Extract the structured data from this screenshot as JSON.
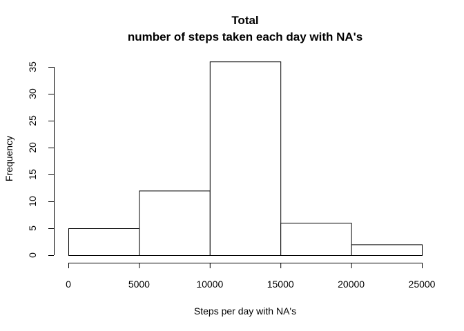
{
  "chart_data": {
    "type": "bar",
    "title_line1": "Total",
    "title_line2": "number of steps taken each day with NA's",
    "xlabel": "Steps per day with NA's",
    "ylabel": "Frequency",
    "bins": [
      {
        "start": 0,
        "end": 5000,
        "count": 5
      },
      {
        "start": 5000,
        "end": 10000,
        "count": 12
      },
      {
        "start": 10000,
        "end": 15000,
        "count": 36
      },
      {
        "start": 15000,
        "end": 20000,
        "count": 6
      },
      {
        "start": 20000,
        "end": 25000,
        "count": 2
      }
    ],
    "xlim": [
      0,
      25000
    ],
    "ylim": [
      0,
      35
    ],
    "xticks": [
      0,
      5000,
      10000,
      15000,
      20000,
      25000
    ],
    "yticks": [
      0,
      5,
      10,
      15,
      20,
      25,
      30,
      35
    ],
    "grid": false,
    "bar_fill": "#ffffff",
    "bar_stroke": "#000000"
  }
}
